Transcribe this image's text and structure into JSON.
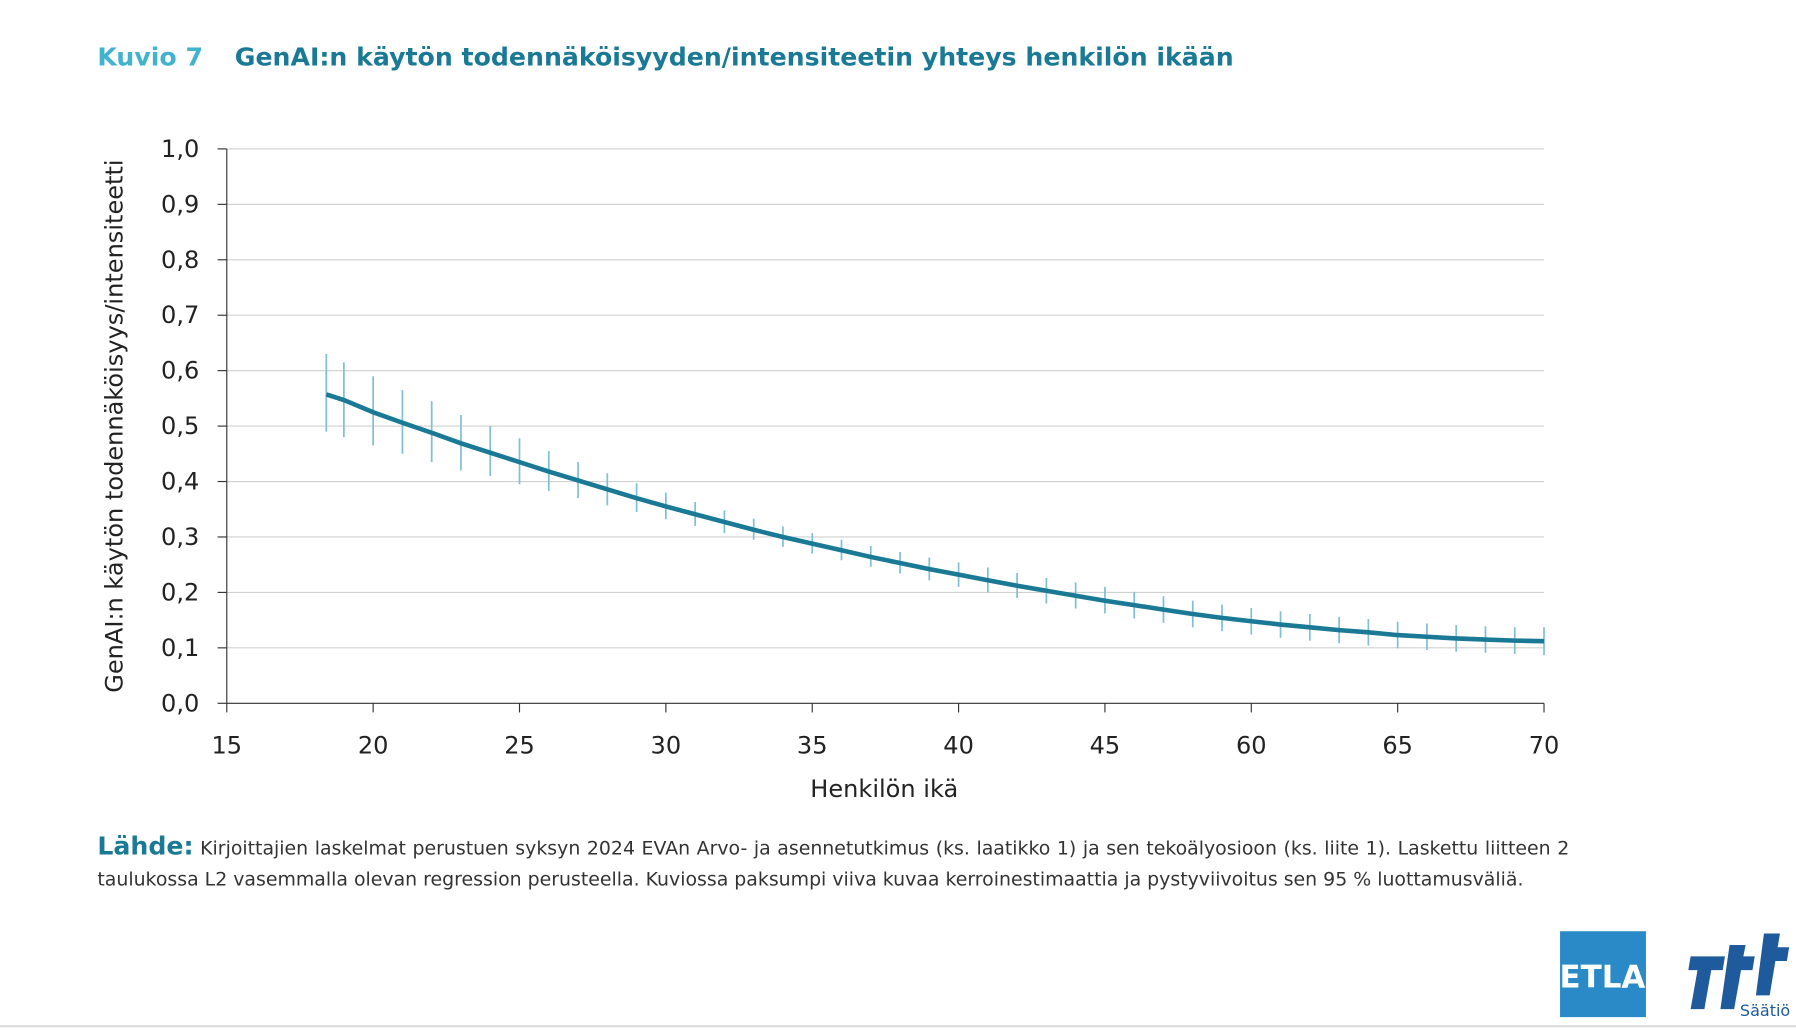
{
  "chart_data": {
    "type": "line",
    "figure_label": "Kuvio 7",
    "title": "GenAI:n käytön todennäköisyyden/intensiteetin yhteys henkilön ikään",
    "xlabel": "Henkilön ikä",
    "ylabel": "GenAI:n käytön todennäköisyys/intensiteetti",
    "xlim": [
      15,
      70
    ],
    "xticks": [
      15,
      20,
      25,
      30,
      35,
      40,
      45,
      60,
      65,
      70
    ],
    "ylim": [
      0,
      1
    ],
    "yticks": [
      {
        "value": 0,
        "label": "0,0"
      },
      {
        "value": 0.1,
        "label": "0,1"
      },
      {
        "value": 0.2,
        "label": "0,2"
      },
      {
        "value": 0.3,
        "label": "0,3"
      },
      {
        "value": 0.4,
        "label": "0,4"
      },
      {
        "value": 0.5,
        "label": "0,5"
      },
      {
        "value": 0.6,
        "label": "0,6"
      },
      {
        "value": 0.7,
        "label": "0,7"
      },
      {
        "value": 0.8,
        "label": "0,8"
      },
      {
        "value": 0.9,
        "label": "0,9"
      },
      {
        "value": 1,
        "label": "1,0"
      }
    ],
    "grid": true,
    "x": [
      18.4,
      19,
      20,
      21,
      22,
      23,
      24,
      25,
      26,
      27,
      28,
      29,
      30,
      31,
      32,
      33,
      34,
      35,
      36,
      37,
      38,
      39,
      40,
      41,
      42,
      43,
      44,
      45,
      48,
      51,
      54,
      57,
      60,
      61,
      62,
      63,
      64,
      65,
      66,
      67,
      68,
      69,
      70
    ],
    "series": [
      {
        "color": "#1a7a96",
        "ci_color": "#7fc0d3",
        "values": [
          0.557,
          0.547,
          0.525,
          0.506,
          0.488,
          0.469,
          0.452,
          0.435,
          0.418,
          0.402,
          0.386,
          0.37,
          0.355,
          0.341,
          0.327,
          0.313,
          0.3,
          0.288,
          0.276,
          0.264,
          0.253,
          0.242,
          0.232,
          0.222,
          0.212,
          0.203,
          0.194,
          0.185,
          0.177,
          0.169,
          0.161,
          0.154,
          0.148,
          0.142,
          0.137,
          0.132,
          0.128,
          0.123,
          0.12,
          0.117,
          0.115,
          0.113,
          0.112
        ],
        "lower": [
          0.49,
          0.48,
          0.465,
          0.45,
          0.435,
          0.42,
          0.41,
          0.395,
          0.383,
          0.37,
          0.357,
          0.345,
          0.332,
          0.32,
          0.307,
          0.295,
          0.282,
          0.27,
          0.258,
          0.246,
          0.234,
          0.222,
          0.21,
          0.2,
          0.19,
          0.18,
          0.171,
          0.162,
          0.153,
          0.145,
          0.137,
          0.13,
          0.124,
          0.118,
          0.113,
          0.108,
          0.104,
          0.099,
          0.096,
          0.093,
          0.091,
          0.089,
          0.087
        ],
        "upper": [
          0.63,
          0.615,
          0.59,
          0.565,
          0.545,
          0.52,
          0.5,
          0.478,
          0.455,
          0.435,
          0.415,
          0.397,
          0.38,
          0.363,
          0.348,
          0.333,
          0.319,
          0.307,
          0.295,
          0.284,
          0.273,
          0.263,
          0.254,
          0.245,
          0.235,
          0.226,
          0.218,
          0.21,
          0.201,
          0.193,
          0.185,
          0.178,
          0.172,
          0.166,
          0.161,
          0.156,
          0.152,
          0.147,
          0.144,
          0.141,
          0.139,
          0.137,
          0.137
        ]
      }
    ]
  },
  "source": {
    "label": "Lähde:",
    "text": "Kirjoittajien laskelmat perustuen syksyn 2024 EVAn Arvo- ja asennetutkimus (ks. laatikko 1) ja sen tekoälyosioon (ks. liite 1). Laskettu liitteen 2 taulukossa L2 vasemmalla olevan regression perusteella. Kuviossa paksumpi viiva kuvaa kerroinestimaattia ja pystyviivoitus sen 95 % luottamus­väliä."
  },
  "logos": {
    "etla": "ETLA",
    "saatio": "Säätiö"
  }
}
